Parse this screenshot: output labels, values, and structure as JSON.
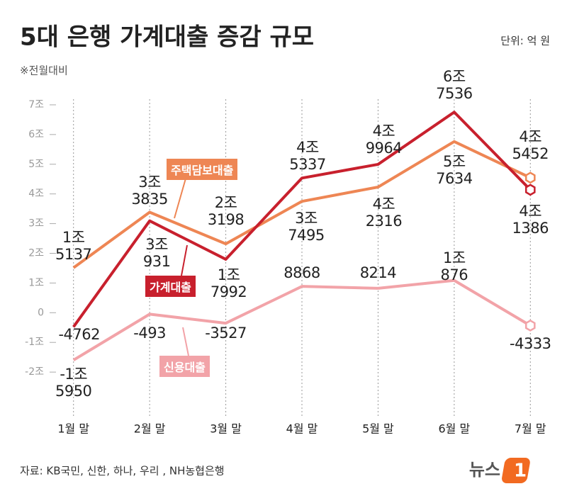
{
  "header": {
    "title": "5대 은행 가계대출 증감 규모",
    "unit": "단위: 억 원",
    "note": "※전월대비"
  },
  "chart_data": {
    "type": "line",
    "categories": [
      "1월 말",
      "2월 말",
      "3월 말",
      "4월 말",
      "5월 말",
      "6월 말",
      "7월 말"
    ],
    "series": [
      {
        "name": "주택담보대출",
        "color": "#ee8654",
        "values": [
          15137,
          33835,
          23198,
          37495,
          42316,
          57634,
          45452
        ],
        "value_labels": [
          "1조 5137",
          "3조 3835",
          "2조 3198",
          "3조 7495",
          "4조 2316",
          "5조 7634",
          "4조 5452"
        ]
      },
      {
        "name": "가계대출",
        "color": "#c8202d",
        "values": [
          -4762,
          30931,
          17992,
          45337,
          49964,
          67536,
          41386
        ],
        "value_labels": [
          "-4762",
          "3조 931",
          "1조 7992",
          "4조 5337",
          "4조 9964",
          "6조 7536",
          "4조 1386"
        ]
      },
      {
        "name": "신용대출",
        "color": "#f2a3a8",
        "values": [
          -15950,
          -493,
          -3527,
          8868,
          8214,
          10876,
          -4333
        ],
        "value_labels": [
          "-1조 5950",
          "-493",
          "-3527",
          "8868",
          "8214",
          "1조876",
          "-4333"
        ]
      }
    ],
    "ylim": [
      -35000,
      75000
    ],
    "yticks": [
      {
        "value": -20000,
        "label": "-2조"
      },
      {
        "value": -10000,
        "label": "-1조"
      },
      0,
      {
        "value": 10000,
        "label": "1조"
      },
      {
        "value": 20000,
        "label": "2조"
      },
      {
        "value": 30000,
        "label": "3조"
      },
      {
        "value": 40000,
        "label": "4조"
      },
      {
        "value": 50000,
        "label": "5조"
      },
      {
        "value": 60000,
        "label": "6조"
      },
      {
        "value": 70000,
        "label": "7조"
      }
    ],
    "grid": true
  },
  "footer": {
    "source": "자료: KB국민, 신한, 하나, 우리 , NH농협은행",
    "brand": "뉴스",
    "brand_mark": "1"
  }
}
